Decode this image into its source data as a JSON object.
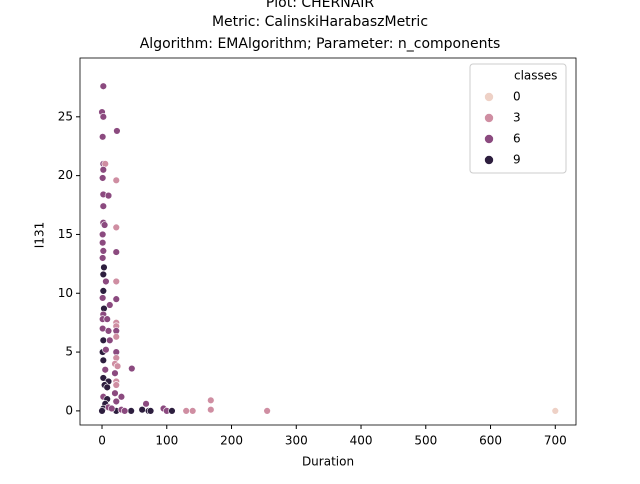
{
  "chart_data": {
    "type": "scatter",
    "title": [
      "Plot: CHERNAIR",
      "Metric: CalinskiHarabaszMetric",
      "Algorithm: EMAlgorithm; Parameter: n_components"
    ],
    "x_label": "Duration",
    "y_label": "I131",
    "xlim": [
      -34,
      732
    ],
    "ylim": [
      -1.2,
      30
    ],
    "xticks": [
      0,
      100,
      200,
      300,
      400,
      500,
      600,
      700
    ],
    "yticks": [
      0,
      5,
      10,
      15,
      20,
      25
    ],
    "legend_title": "classes",
    "legend_position": "upper right",
    "hue": [
      {
        "label": 0,
        "color": "#eed1c6"
      },
      {
        "label": 3,
        "color": "#cf8ea2"
      },
      {
        "label": 6,
        "color": "#8b4a7f"
      },
      {
        "label": 9,
        "color": "#2d1e3e"
      }
    ],
    "x": [
      2,
      0,
      2,
      1,
      23,
      2,
      5,
      2,
      1,
      22,
      2,
      10,
      2,
      2,
      4,
      22,
      1,
      1,
      2,
      22,
      1,
      3,
      2,
      6,
      22,
      2,
      1,
      22,
      12,
      3,
      2,
      1,
      8,
      22,
      22,
      1,
      10,
      22,
      22,
      2,
      12,
      1,
      6,
      22,
      22,
      2,
      20,
      24,
      46,
      5,
      20,
      2,
      10,
      22,
      4,
      8,
      22,
      20,
      2,
      30,
      8,
      5,
      22,
      68,
      168,
      2,
      10,
      22,
      30,
      45,
      62,
      72,
      95,
      100,
      108,
      130,
      140,
      168,
      255,
      700,
      75,
      35,
      15,
      0
    ],
    "y": [
      27.6,
      25.4,
      25.0,
      23.3,
      23.8,
      21.0,
      21.0,
      20.5,
      19.8,
      19.6,
      18.4,
      18.3,
      17.4,
      16.0,
      15.8,
      15.6,
      15.0,
      14.3,
      13.6,
      13.5,
      13.0,
      12.2,
      11.6,
      11.0,
      11.0,
      10.2,
      9.6,
      9.5,
      9.0,
      8.7,
      8.2,
      7.8,
      7.8,
      7.5,
      7.2,
      7.0,
      6.8,
      6.8,
      6.3,
      6.0,
      6.0,
      5.0,
      5.2,
      5.0,
      4.5,
      4.3,
      4.0,
      3.8,
      3.6,
      3.5,
      3.2,
      2.8,
      2.5,
      2.5,
      2.2,
      2.0,
      2.2,
      1.5,
      1.2,
      1.2,
      1.0,
      0.6,
      0.8,
      0.6,
      0.9,
      0.2,
      0.3,
      0.0,
      0.1,
      0.0,
      0.1,
      0.0,
      0.2,
      0.0,
      0.0,
      0.0,
      0.0,
      0.1,
      0.0,
      0.0,
      0.0,
      0.0,
      0.2,
      0.0
    ],
    "class": [
      6,
      6,
      6,
      6,
      6,
      6,
      3,
      6,
      6,
      3,
      6,
      6,
      6,
      6,
      6,
      3,
      6,
      6,
      6,
      6,
      6,
      9,
      9,
      6,
      3,
      9,
      6,
      6,
      6,
      9,
      6,
      6,
      6,
      3,
      3,
      6,
      6,
      6,
      3,
      9,
      6,
      9,
      6,
      6,
      3,
      9,
      3,
      3,
      6,
      6,
      6,
      9,
      9,
      3,
      9,
      9,
      3,
      6,
      6,
      6,
      9,
      9,
      6,
      6,
      3,
      9,
      6,
      9,
      6,
      9,
      9,
      9,
      6,
      6,
      9,
      3,
      3,
      3,
      3,
      0,
      9,
      6,
      6,
      9
    ]
  }
}
